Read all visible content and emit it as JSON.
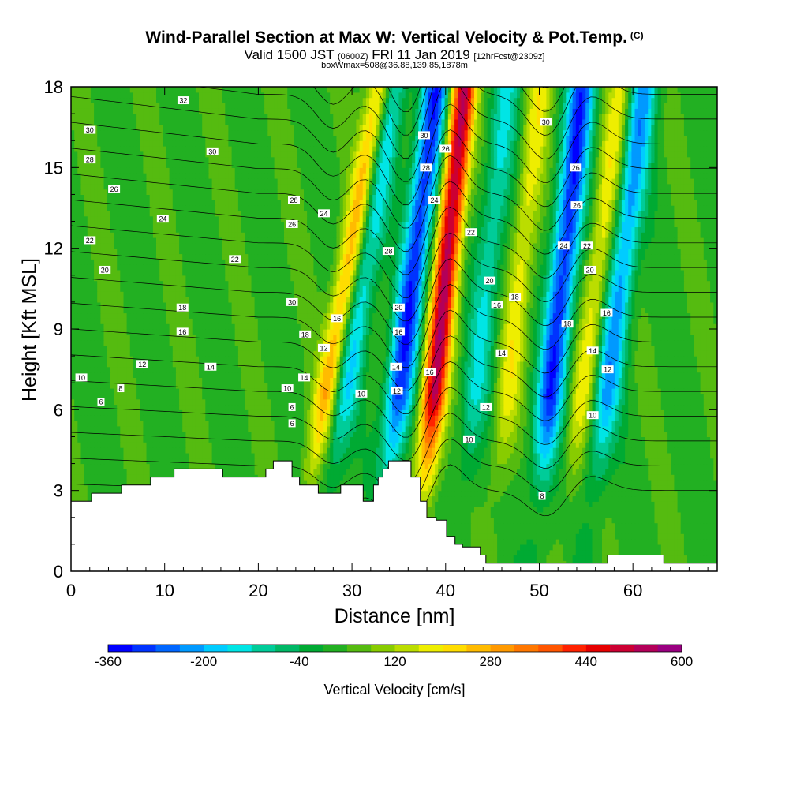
{
  "title": {
    "main": "Wind-Parallel Section at Max W: Vertical Velocity & Pot.Temp.",
    "main_tag": "(C)",
    "line2_a": "Valid 1500 JST",
    "line2_b": "(0600Z)",
    "line2_c": "FRI 11 Jan 2019",
    "line2_d": "[12hrFcst@2309z]",
    "line3": "boxWmax=508@36.88,139.85,1878m"
  },
  "chart_data": {
    "type": "heatmap",
    "xlabel": "Distance [nm]",
    "ylabel": "Height [Kft MSL]",
    "xlim": [
      0,
      69
    ],
    "ylim": [
      0,
      18
    ],
    "xticks": [
      0,
      10,
      20,
      30,
      40,
      50,
      60
    ],
    "yticks": [
      0,
      3,
      6,
      9,
      12,
      15,
      18
    ],
    "colorbar": {
      "label": "Vertical Velocity [cm/s]",
      "ticks": [
        -360,
        -200,
        -40,
        120,
        280,
        440,
        600
      ],
      "min": -360,
      "max": 600,
      "step": 40,
      "colors": [
        "#0000ff",
        "#0033ff",
        "#0066ff",
        "#0099ff",
        "#00ccff",
        "#00e5e5",
        "#00cc99",
        "#00b866",
        "#00aa33",
        "#22b022",
        "#55bb10",
        "#88cc00",
        "#bbdd00",
        "#eeee00",
        "#ffdd00",
        "#ffbb00",
        "#ff9900",
        "#ff7700",
        "#ff5500",
        "#ff2200",
        "#e60000",
        "#cc0033",
        "#b30059",
        "#990080"
      ]
    },
    "w_features": [
      {
        "kind": "updraft",
        "x_center": 38.6,
        "tilt": 0.28,
        "peak": 508
      },
      {
        "kind": "downdraft",
        "x_center": 34.8,
        "tilt": 0.35,
        "peak": -340
      },
      {
        "kind": "updraft",
        "x_center": 27.0,
        "tilt": 0.5,
        "peak": 260
      },
      {
        "kind": "downdraft",
        "x_center": 29.0,
        "tilt": 0.45,
        "peak": -200
      },
      {
        "kind": "downdraft",
        "x_center": 51.0,
        "tilt": 0.3,
        "peak": -340
      },
      {
        "kind": "updraft",
        "x_center": 54.5,
        "tilt": 0.35,
        "peak": 160
      },
      {
        "kind": "downdraft",
        "x_center": 57.0,
        "tilt": 0.35,
        "peak": -250
      },
      {
        "kind": "updraft",
        "x_center": 46.5,
        "tilt": 0.3,
        "peak": 150
      },
      {
        "kind": "downdraft",
        "x_center": 43.0,
        "tilt": 0.3,
        "peak": -150
      }
    ],
    "theta_contours": {
      "levels": [
        6,
        8,
        10,
        12,
        14,
        16,
        18,
        20,
        22,
        24,
        26,
        28,
        30,
        32
      ],
      "interval": 2
    },
    "terrain": [
      [
        0.0,
        2.6
      ],
      [
        2.2,
        2.6
      ],
      [
        2.2,
        2.9
      ],
      [
        5.4,
        2.9
      ],
      [
        5.4,
        3.2
      ],
      [
        8.5,
        3.2
      ],
      [
        8.5,
        3.5
      ],
      [
        11.0,
        3.5
      ],
      [
        11.0,
        3.8
      ],
      [
        16.2,
        3.8
      ],
      [
        16.2,
        3.5
      ],
      [
        20.8,
        3.5
      ],
      [
        20.8,
        3.8
      ],
      [
        21.6,
        3.8
      ],
      [
        21.6,
        4.1
      ],
      [
        23.6,
        4.1
      ],
      [
        23.6,
        3.5
      ],
      [
        24.4,
        3.5
      ],
      [
        24.4,
        3.2
      ],
      [
        26.4,
        3.2
      ],
      [
        26.4,
        2.9
      ],
      [
        28.8,
        2.9
      ],
      [
        28.8,
        3.2
      ],
      [
        31.2,
        3.2
      ],
      [
        31.2,
        2.6
      ],
      [
        32.3,
        2.6
      ],
      [
        32.3,
        3.2
      ],
      [
        32.8,
        3.2
      ],
      [
        32.8,
        3.5
      ],
      [
        33.3,
        3.5
      ],
      [
        33.3,
        3.8
      ],
      [
        33.9,
        3.8
      ],
      [
        33.9,
        4.1
      ],
      [
        36.3,
        4.1
      ],
      [
        36.3,
        3.5
      ],
      [
        37.3,
        3.5
      ],
      [
        37.3,
        2.6
      ],
      [
        38.0,
        2.6
      ],
      [
        38.0,
        2.0
      ],
      [
        39.0,
        2.0
      ],
      [
        39.0,
        1.9
      ],
      [
        40.1,
        1.9
      ],
      [
        40.1,
        1.3
      ],
      [
        41.0,
        1.3
      ],
      [
        41.0,
        1.0
      ],
      [
        41.8,
        1.0
      ],
      [
        41.8,
        0.9
      ],
      [
        43.7,
        0.9
      ],
      [
        43.7,
        0.6
      ],
      [
        44.3,
        0.6
      ],
      [
        44.3,
        0.3
      ],
      [
        57.3,
        0.3
      ],
      [
        57.3,
        0.6
      ],
      [
        63.3,
        0.6
      ],
      [
        63.3,
        0.3
      ],
      [
        69.0,
        0.3
      ]
    ]
  },
  "contour_labels": [
    {
      "text": "32",
      "x": 12.0,
      "y": 17.5
    },
    {
      "text": "30",
      "x": 2.0,
      "y": 16.4
    },
    {
      "text": "30",
      "x": 15.1,
      "y": 15.6
    },
    {
      "text": "28",
      "x": 2.0,
      "y": 15.3
    },
    {
      "text": "26",
      "x": 4.6,
      "y": 14.2
    },
    {
      "text": "24",
      "x": 9.8,
      "y": 13.1
    },
    {
      "text": "22",
      "x": 2.0,
      "y": 12.3
    },
    {
      "text": "20",
      "x": 3.6,
      "y": 11.2
    },
    {
      "text": "22",
      "x": 17.5,
      "y": 11.6
    },
    {
      "text": "18",
      "x": 11.9,
      "y": 9.8
    },
    {
      "text": "16",
      "x": 11.9,
      "y": 8.9
    },
    {
      "text": "12",
      "x": 7.6,
      "y": 7.7
    },
    {
      "text": "14",
      "x": 14.9,
      "y": 7.6
    },
    {
      "text": "10",
      "x": 1.1,
      "y": 7.2
    },
    {
      "text": "8",
      "x": 5.3,
      "y": 6.8
    },
    {
      "text": "6",
      "x": 3.2,
      "y": 6.3
    },
    {
      "text": "28",
      "x": 23.8,
      "y": 13.8
    },
    {
      "text": "26",
      "x": 23.6,
      "y": 12.9
    },
    {
      "text": "24",
      "x": 27.0,
      "y": 13.3
    },
    {
      "text": "30",
      "x": 23.6,
      "y": 10.0
    },
    {
      "text": "16",
      "x": 28.4,
      "y": 9.4
    },
    {
      "text": "18",
      "x": 25.0,
      "y": 8.8
    },
    {
      "text": "12",
      "x": 27.0,
      "y": 8.3
    },
    {
      "text": "14",
      "x": 24.9,
      "y": 7.2
    },
    {
      "text": "10",
      "x": 23.1,
      "y": 6.8
    },
    {
      "text": "6",
      "x": 23.6,
      "y": 6.1
    },
    {
      "text": "6",
      "x": 23.6,
      "y": 5.5
    },
    {
      "text": "28",
      "x": 33.9,
      "y": 11.9
    },
    {
      "text": "20",
      "x": 35.0,
      "y": 9.8
    },
    {
      "text": "16",
      "x": 35.0,
      "y": 8.9
    },
    {
      "text": "14",
      "x": 34.7,
      "y": 7.6
    },
    {
      "text": "10",
      "x": 31.0,
      "y": 6.6
    },
    {
      "text": "12",
      "x": 34.8,
      "y": 6.7
    },
    {
      "text": "30",
      "x": 37.7,
      "y": 16.2
    },
    {
      "text": "26",
      "x": 40.0,
      "y": 15.7
    },
    {
      "text": "28",
      "x": 37.9,
      "y": 15.0
    },
    {
      "text": "24",
      "x": 38.8,
      "y": 13.8
    },
    {
      "text": "16",
      "x": 38.3,
      "y": 7.4
    },
    {
      "text": "22",
      "x": 42.7,
      "y": 12.6
    },
    {
      "text": "20",
      "x": 44.7,
      "y": 10.8
    },
    {
      "text": "16",
      "x": 45.5,
      "y": 9.9
    },
    {
      "text": "18",
      "x": 47.4,
      "y": 10.2
    },
    {
      "text": "14",
      "x": 46.0,
      "y": 8.1
    },
    {
      "text": "12",
      "x": 44.3,
      "y": 6.1
    },
    {
      "text": "10",
      "x": 42.5,
      "y": 4.9
    },
    {
      "text": "30",
      "x": 50.7,
      "y": 16.7
    },
    {
      "text": "26",
      "x": 53.9,
      "y": 15.0
    },
    {
      "text": "26",
      "x": 54.0,
      "y": 13.6
    },
    {
      "text": "24",
      "x": 52.6,
      "y": 12.1
    },
    {
      "text": "22",
      "x": 55.1,
      "y": 12.1
    },
    {
      "text": "20",
      "x": 55.4,
      "y": 11.2
    },
    {
      "text": "18",
      "x": 53.0,
      "y": 9.2
    },
    {
      "text": "16",
      "x": 57.2,
      "y": 9.6
    },
    {
      "text": "14",
      "x": 55.7,
      "y": 8.2
    },
    {
      "text": "12",
      "x": 57.3,
      "y": 7.5
    },
    {
      "text": "10",
      "x": 55.7,
      "y": 5.8
    },
    {
      "text": "8",
      "x": 50.3,
      "y": 2.8
    }
  ]
}
